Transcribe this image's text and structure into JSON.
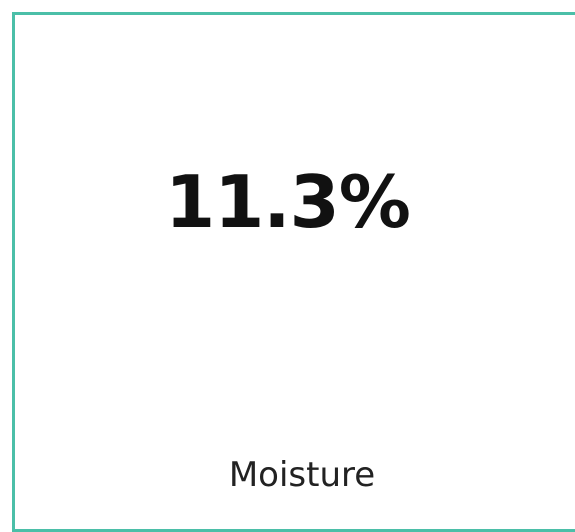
{
  "card": {
    "value": "11.3%",
    "label": "Moisture"
  }
}
